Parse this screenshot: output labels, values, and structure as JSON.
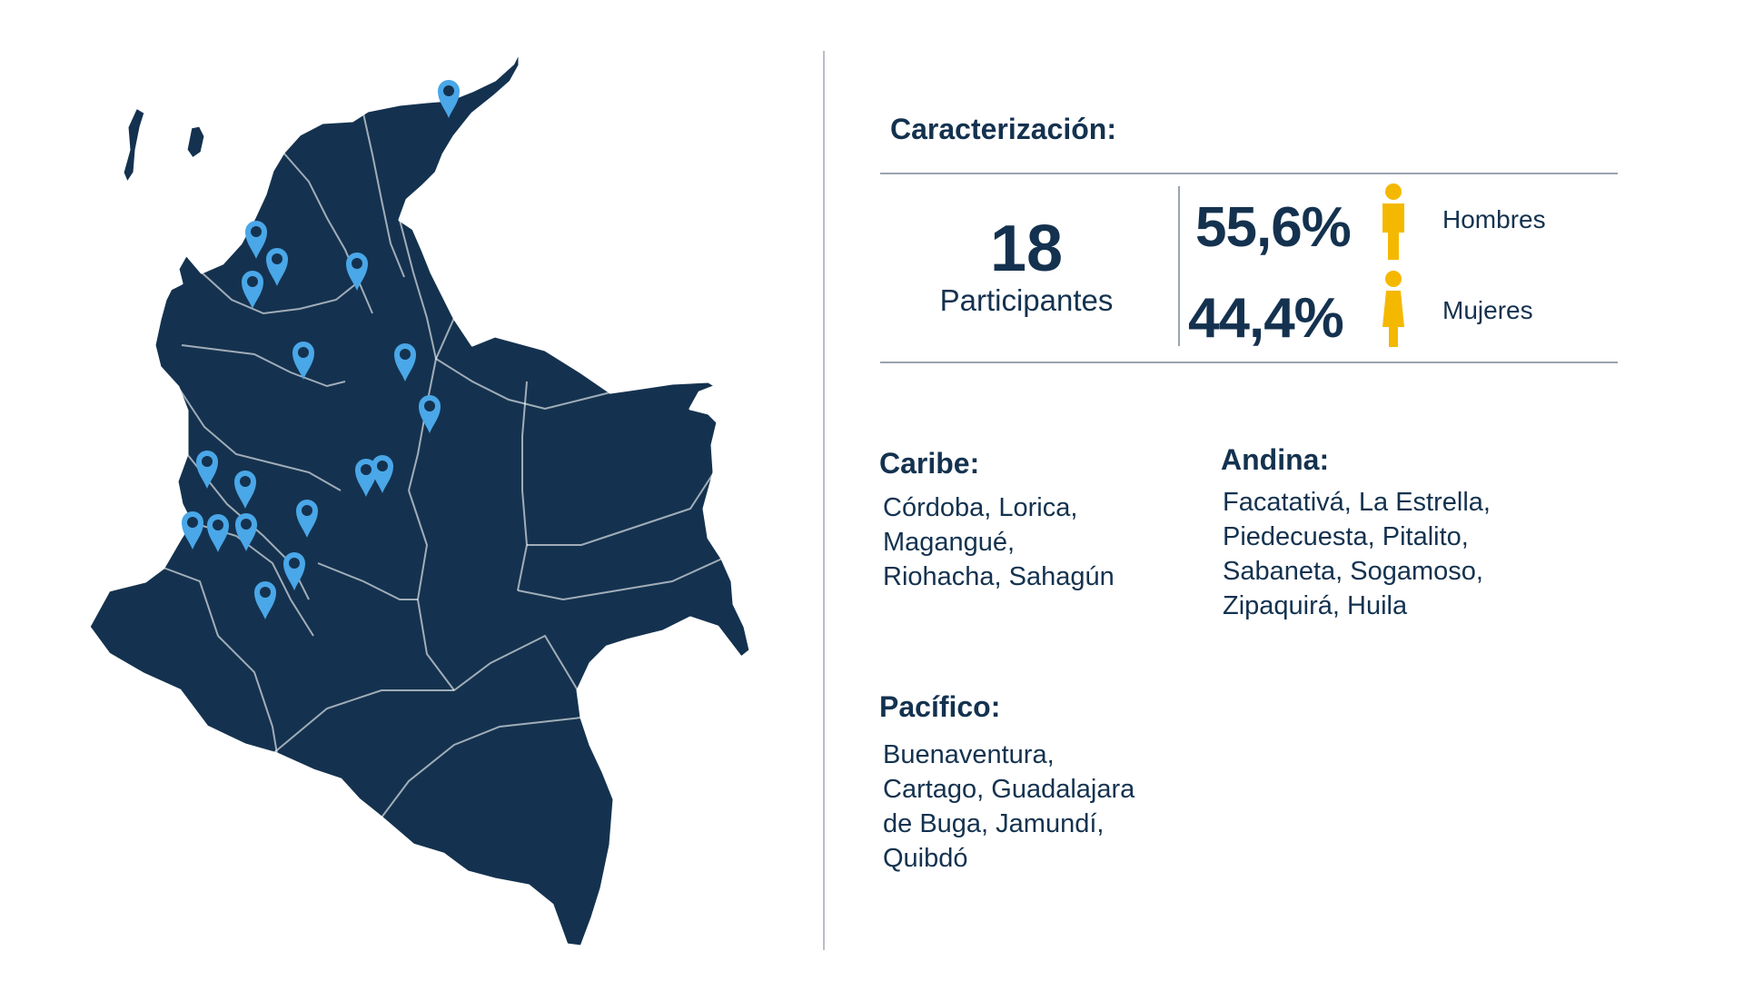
{
  "colors": {
    "primary": "#14324f",
    "map_fill": "#14324f",
    "marker": "#4aa7e8",
    "accent": "#f5b800",
    "line": "#9aa3ad"
  },
  "map": {
    "marker_icon": "map-pin-icon",
    "marker_count": 18
  },
  "characterization": {
    "title": "Caracterización:",
    "participants": {
      "value": "18",
      "label": "Participantes"
    },
    "gender": [
      {
        "percent": "55,6%",
        "label": "Hombres",
        "icon": "man-icon"
      },
      {
        "percent": "44,4%",
        "label": "Mujeres",
        "icon": "woman-icon"
      }
    ]
  },
  "regions": [
    {
      "title": "Caribe:",
      "places": [
        "Córdoba, Lorica,",
        "Magangué,",
        "Riohacha, Sahagún"
      ]
    },
    {
      "title": "Andina:",
      "places": [
        "Facatativá, La Estrella,",
        "Piedecuesta, Pitalito,",
        "Sabaneta, Sogamoso,",
        "Zipaquirá, Huila"
      ]
    },
    {
      "title": "Pacífico:",
      "places": [
        "Buenaventura,",
        "Cartago, Guadalajara",
        "de Buga, Jamundí,",
        "Quibdó"
      ]
    }
  ]
}
